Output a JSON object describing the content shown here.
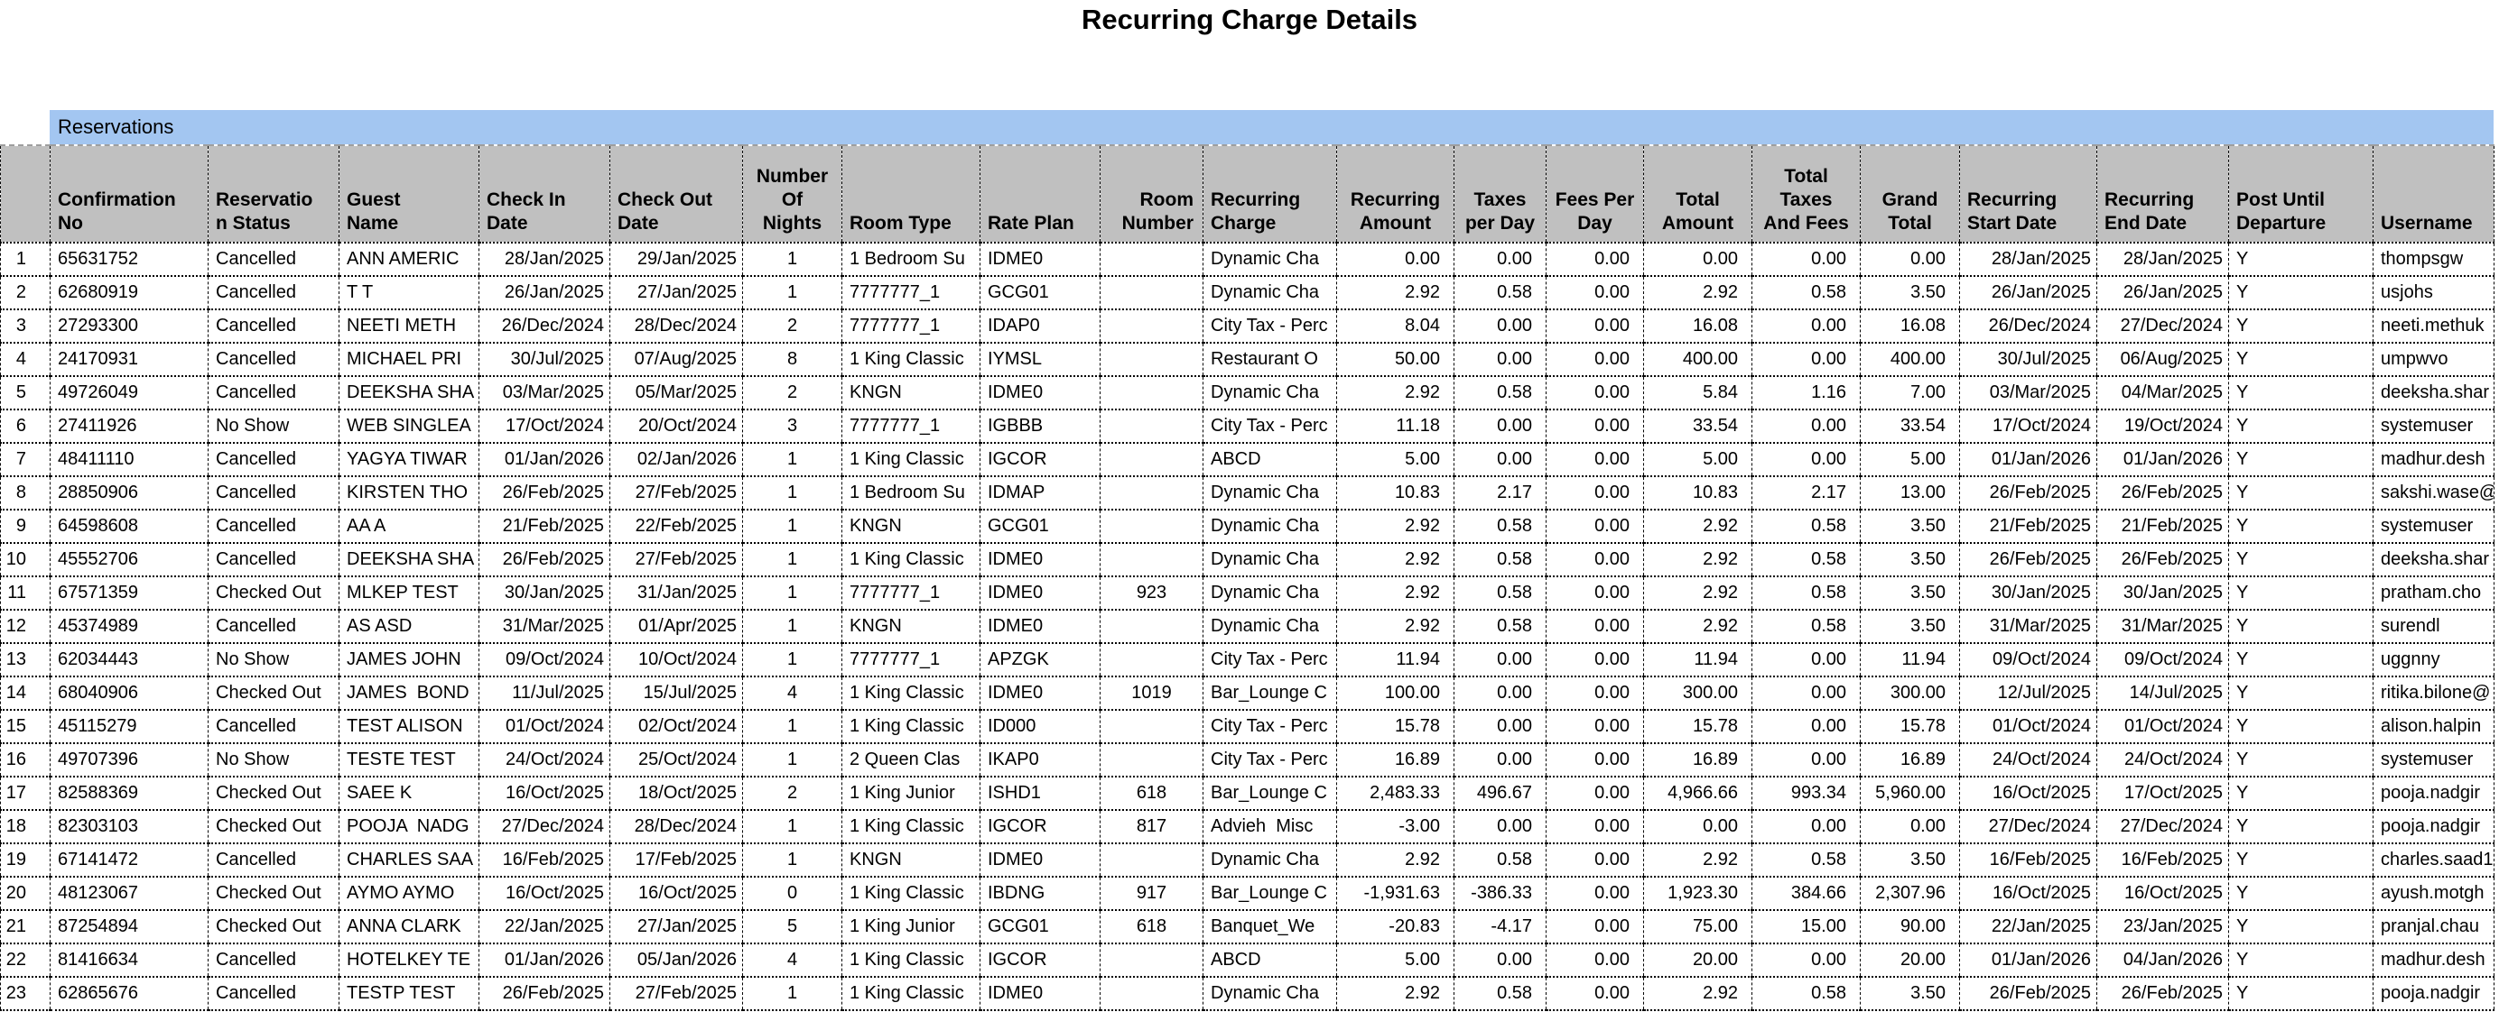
{
  "title": "Recurring Charge Details",
  "section_label": "Reservations",
  "colors": {
    "band_blue": "#a3c6f1",
    "header_gray": "#c0c0c0",
    "grid_line": "#000000",
    "page_bg": "#ffffff"
  },
  "table": {
    "columns": [
      {
        "key": "confirmation_no",
        "label": "Confirmation\nNo",
        "h": "hl",
        "d": "al",
        "w": 175
      },
      {
        "key": "reservation_status",
        "label": "Reservatio\nn Status",
        "h": "hl",
        "d": "al",
        "w": 145
      },
      {
        "key": "guest_name",
        "label": "Guest\nName",
        "h": "hl",
        "d": "al",
        "w": 155
      },
      {
        "key": "check_in_date",
        "label": "Check In\nDate",
        "h": "hl",
        "d": "ar",
        "w": 145
      },
      {
        "key": "check_out_date",
        "label": "Check Out\nDate",
        "h": "hl",
        "d": "ar",
        "w": 147
      },
      {
        "key": "number_of_nights",
        "label": "Number\nOf\nNights",
        "h": "hc",
        "d": "ac",
        "w": 110
      },
      {
        "key": "room_type",
        "label": "Room Type",
        "h": "hl",
        "d": "al",
        "w": 153
      },
      {
        "key": "rate_plan",
        "label": "Rate Plan",
        "h": "hl",
        "d": "al",
        "w": 133
      },
      {
        "key": "room_number",
        "label": "Room\nNumber",
        "h": "hr",
        "d": "ac",
        "w": 114
      },
      {
        "key": "recurring_charge",
        "label": "Recurring\nCharge",
        "h": "hl",
        "d": "al",
        "w": 148
      },
      {
        "key": "recurring_amount",
        "label": "Recurring\nAmount",
        "h": "hc",
        "d": "an",
        "w": 130
      },
      {
        "key": "taxes_per_day",
        "label": "Taxes\nper Day",
        "h": "hc",
        "d": "an",
        "w": 102
      },
      {
        "key": "fees_per_day",
        "label": "Fees Per\nDay",
        "h": "hc",
        "d": "an",
        "w": 108
      },
      {
        "key": "total_amount",
        "label": "Total\nAmount",
        "h": "hc",
        "d": "an",
        "w": 120
      },
      {
        "key": "total_taxes_and_fees",
        "label": "Total\nTaxes\nAnd Fees",
        "h": "hc",
        "d": "an",
        "w": 120
      },
      {
        "key": "grand_total",
        "label": "Grand\nTotal",
        "h": "hc",
        "d": "an",
        "w": 110
      },
      {
        "key": "recurring_start_date",
        "label": "Recurring\nStart Date",
        "h": "hl",
        "d": "ar",
        "w": 152
      },
      {
        "key": "recurring_end_date",
        "label": "Recurring\nEnd Date",
        "h": "hl",
        "d": "ar",
        "w": 146
      },
      {
        "key": "post_until_departure",
        "label": "Post Until\nDeparture",
        "h": "hl",
        "d": "al",
        "w": 160
      },
      {
        "key": "username",
        "label": "Username",
        "h": "hl",
        "d": "al",
        "w": 134
      }
    ],
    "rows": [
      [
        "1",
        "65631752",
        "Cancelled",
        "ANN AMERIC",
        "28/Jan/2025",
        "29/Jan/2025",
        "1",
        "1 Bedroom Su",
        "IDME0",
        "",
        "Dynamic Cha",
        "0.00",
        "0.00",
        "0.00",
        "0.00",
        "0.00",
        "0.00",
        "28/Jan/2025",
        "28/Jan/2025",
        "Y",
        "thompsgw"
      ],
      [
        "2",
        "62680919",
        "Cancelled",
        "T T",
        "26/Jan/2025",
        "27/Jan/2025",
        "1",
        "7777777_1",
        "GCG01",
        "",
        "Dynamic Cha",
        "2.92",
        "0.58",
        "0.00",
        "2.92",
        "0.58",
        "3.50",
        "26/Jan/2025",
        "26/Jan/2025",
        "Y",
        "usjohs"
      ],
      [
        "3",
        "27293300",
        "Cancelled",
        "NEETI METH",
        "26/Dec/2024",
        "28/Dec/2024",
        "2",
        "7777777_1",
        "IDAP0",
        "",
        "City Tax - Perc",
        "8.04",
        "0.00",
        "0.00",
        "16.08",
        "0.00",
        "16.08",
        "26/Dec/2024",
        "27/Dec/2024",
        "Y",
        "neeti.methuk"
      ],
      [
        "4",
        "24170931",
        "Cancelled",
        "MICHAEL PRI",
        "30/Jul/2025",
        "07/Aug/2025",
        "8",
        "1 King Classic",
        "IYMSL",
        "",
        "Restaurant O",
        "50.00",
        "0.00",
        "0.00",
        "400.00",
        "0.00",
        "400.00",
        "30/Jul/2025",
        "06/Aug/2025",
        "Y",
        "umpwvo"
      ],
      [
        "5",
        "49726049",
        "Cancelled",
        "DEEKSHA SHA",
        "03/Mar/2025",
        "05/Mar/2025",
        "2",
        "KNGN",
        "IDME0",
        "",
        "Dynamic Cha",
        "2.92",
        "0.58",
        "0.00",
        "5.84",
        "1.16",
        "7.00",
        "03/Mar/2025",
        "04/Mar/2025",
        "Y",
        "deeksha.shar"
      ],
      [
        "6",
        "27411926",
        "No Show",
        "WEB SINGLEA",
        "17/Oct/2024",
        "20/Oct/2024",
        "3",
        "7777777_1",
        "IGBBB",
        "",
        "City Tax - Perc",
        "11.18",
        "0.00",
        "0.00",
        "33.54",
        "0.00",
        "33.54",
        "17/Oct/2024",
        "19/Oct/2024",
        "Y",
        "systemuser"
      ],
      [
        "7",
        "48411110",
        "Cancelled",
        "YAGYA TIWAR",
        "01/Jan/2026",
        "02/Jan/2026",
        "1",
        "1 King Classic",
        "IGCOR",
        "",
        "ABCD",
        "5.00",
        "0.00",
        "0.00",
        "5.00",
        "0.00",
        "5.00",
        "01/Jan/2026",
        "01/Jan/2026",
        "Y",
        "madhur.desh"
      ],
      [
        "8",
        "28850906",
        "Cancelled",
        "KIRSTEN THO",
        "26/Feb/2025",
        "27/Feb/2025",
        "1",
        "1 Bedroom Su",
        "IDMAP",
        "",
        "Dynamic Cha",
        "10.83",
        "2.17",
        "0.00",
        "10.83",
        "2.17",
        "13.00",
        "26/Feb/2025",
        "26/Feb/2025",
        "Y",
        "sakshi.wase@"
      ],
      [
        "9",
        "64598608",
        "Cancelled",
        "AA A",
        "21/Feb/2025",
        "22/Feb/2025",
        "1",
        "KNGN",
        "GCG01",
        "",
        "Dynamic Cha",
        "2.92",
        "0.58",
        "0.00",
        "2.92",
        "0.58",
        "3.50",
        "21/Feb/2025",
        "21/Feb/2025",
        "Y",
        "systemuser"
      ],
      [
        "10",
        "45552706",
        "Cancelled",
        "DEEKSHA SHA",
        "26/Feb/2025",
        "27/Feb/2025",
        "1",
        "1 King Classic",
        "IDME0",
        "",
        "Dynamic Cha",
        "2.92",
        "0.58",
        "0.00",
        "2.92",
        "0.58",
        "3.50",
        "26/Feb/2025",
        "26/Feb/2025",
        "Y",
        "deeksha.shar"
      ],
      [
        "11",
        "67571359",
        "Checked Out",
        "MLKEP TEST",
        "30/Jan/2025",
        "31/Jan/2025",
        "1",
        "7777777_1",
        "IDME0",
        "923",
        "Dynamic Cha",
        "2.92",
        "0.58",
        "0.00",
        "2.92",
        "0.58",
        "3.50",
        "30/Jan/2025",
        "30/Jan/2025",
        "Y",
        "pratham.cho"
      ],
      [
        "12",
        "45374989",
        "Cancelled",
        "AS ASD",
        "31/Mar/2025",
        "01/Apr/2025",
        "1",
        "KNGN",
        "IDME0",
        "",
        "Dynamic Cha",
        "2.92",
        "0.58",
        "0.00",
        "2.92",
        "0.58",
        "3.50",
        "31/Mar/2025",
        "31/Mar/2025",
        "Y",
        "surendl"
      ],
      [
        "13",
        "62034443",
        "No Show",
        "JAMES JOHN",
        "09/Oct/2024",
        "10/Oct/2024",
        "1",
        "7777777_1",
        "APZGK",
        "",
        "City Tax - Perc",
        "11.94",
        "0.00",
        "0.00",
        "11.94",
        "0.00",
        "11.94",
        "09/Oct/2024",
        "09/Oct/2024",
        "Y",
        "uggnny"
      ],
      [
        "14",
        "68040906",
        "Checked Out",
        "JAMES  BOND",
        "11/Jul/2025",
        "15/Jul/2025",
        "4",
        "1 King Classic",
        "IDME0",
        "1019",
        "Bar_Lounge C",
        "100.00",
        "0.00",
        "0.00",
        "300.00",
        "0.00",
        "300.00",
        "12/Jul/2025",
        "14/Jul/2025",
        "Y",
        "ritika.bilone@"
      ],
      [
        "15",
        "45115279",
        "Cancelled",
        "TEST ALISON",
        "01/Oct/2024",
        "02/Oct/2024",
        "1",
        "1 King Classic",
        "ID000",
        "",
        "City Tax - Perc",
        "15.78",
        "0.00",
        "0.00",
        "15.78",
        "0.00",
        "15.78",
        "01/Oct/2024",
        "01/Oct/2024",
        "Y",
        "alison.halpin"
      ],
      [
        "16",
        "49707396",
        "No Show",
        "TESTE TEST",
        "24/Oct/2024",
        "25/Oct/2024",
        "1",
        "2 Queen Clas",
        "IKAP0",
        "",
        "City Tax - Perc",
        "16.89",
        "0.00",
        "0.00",
        "16.89",
        "0.00",
        "16.89",
        "24/Oct/2024",
        "24/Oct/2024",
        "Y",
        "systemuser"
      ],
      [
        "17",
        "82588369",
        "Checked Out",
        "SAEE K",
        "16/Oct/2025",
        "18/Oct/2025",
        "2",
        "1 King Junior",
        "ISHD1",
        "618",
        "Bar_Lounge C",
        "2,483.33",
        "496.67",
        "0.00",
        "4,966.66",
        "993.34",
        "5,960.00",
        "16/Oct/2025",
        "17/Oct/2025",
        "Y",
        "pooja.nadgir"
      ],
      [
        "18",
        "82303103",
        "Checked Out",
        "POOJA  NADG",
        "27/Dec/2024",
        "28/Dec/2024",
        "1",
        "1 King Classic",
        "IGCOR",
        "817",
        "Advieh  Misc",
        "-3.00",
        "0.00",
        "0.00",
        "0.00",
        "0.00",
        "0.00",
        "27/Dec/2024",
        "27/Dec/2024",
        "Y",
        "pooja.nadgir"
      ],
      [
        "19",
        "67141472",
        "Cancelled",
        "CHARLES SAA",
        "16/Feb/2025",
        "17/Feb/2025",
        "1",
        "KNGN",
        "IDME0",
        "",
        "Dynamic Cha",
        "2.92",
        "0.58",
        "0.00",
        "2.92",
        "0.58",
        "3.50",
        "16/Feb/2025",
        "16/Feb/2025",
        "Y",
        "charles.saad1"
      ],
      [
        "20",
        "48123067",
        "Checked Out",
        "AYMO AYMO",
        "16/Oct/2025",
        "16/Oct/2025",
        "0",
        "1 King Classic",
        "IBDNG",
        "917",
        "Bar_Lounge C",
        "-1,931.63",
        "-386.33",
        "0.00",
        "1,923.30",
        "384.66",
        "2,307.96",
        "16/Oct/2025",
        "16/Oct/2025",
        "Y",
        "ayush.motgh"
      ],
      [
        "21",
        "87254894",
        "Checked Out",
        "ANNA CLARK",
        "22/Jan/2025",
        "27/Jan/2025",
        "5",
        "1 King Junior",
        "GCG01",
        "618",
        "Banquet_We",
        "-20.83",
        "-4.17",
        "0.00",
        "75.00",
        "15.00",
        "90.00",
        "22/Jan/2025",
        "23/Jan/2025",
        "Y",
        "pranjal.chau"
      ],
      [
        "22",
        "81416634",
        "Cancelled",
        "HOTELKEY TE",
        "01/Jan/2026",
        "05/Jan/2026",
        "4",
        "1 King Classic",
        "IGCOR",
        "",
        "ABCD",
        "5.00",
        "0.00",
        "0.00",
        "20.00",
        "0.00",
        "20.00",
        "01/Jan/2026",
        "04/Jan/2026",
        "Y",
        "madhur.desh"
      ],
      [
        "23",
        "62865676",
        "Cancelled",
        "TESTP TEST",
        "26/Feb/2025",
        "27/Feb/2025",
        "1",
        "1 King Classic",
        "IDME0",
        "",
        "Dynamic Cha",
        "2.92",
        "0.58",
        "0.00",
        "2.92",
        "0.58",
        "3.50",
        "26/Feb/2025",
        "26/Feb/2025",
        "Y",
        "pooja.nadgir"
      ]
    ]
  }
}
